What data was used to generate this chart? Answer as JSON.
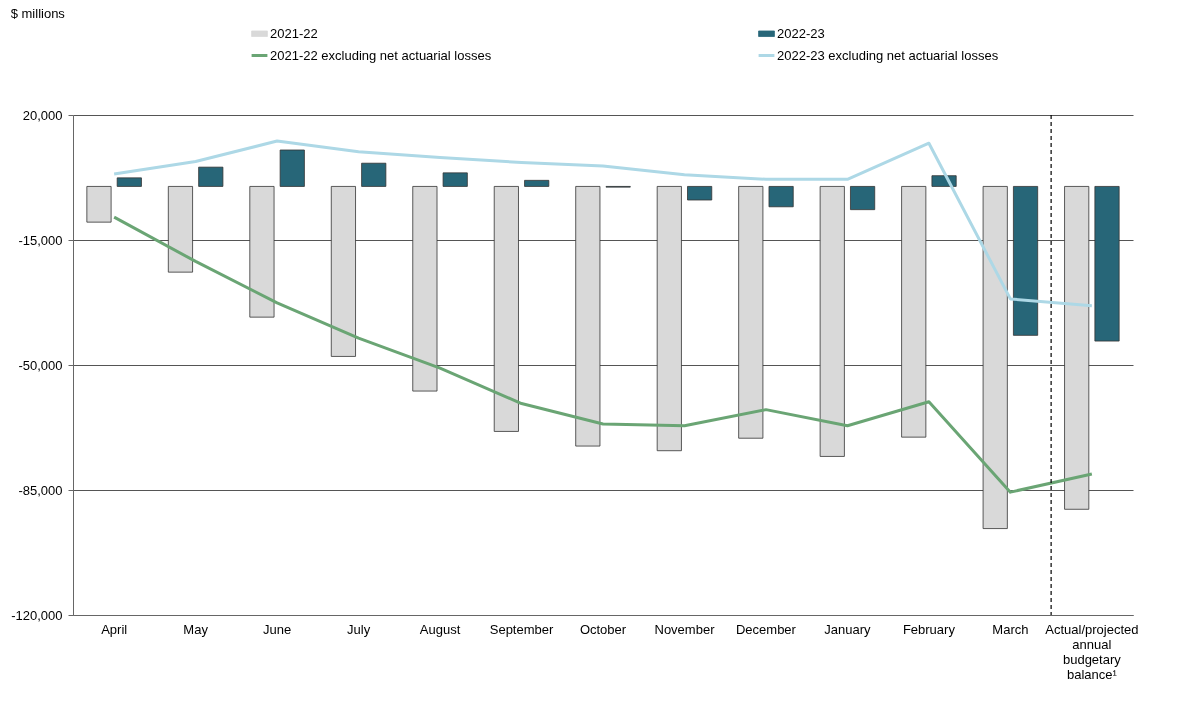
{
  "chart_data": {
    "type": "bar",
    "annotations": [
      "$ millions"
    ],
    "categories": [
      "April",
      "May",
      "June",
      "July",
      "August",
      "September",
      "October",
      "November",
      "December",
      "January",
      "February",
      "March",
      "Actual/projected annual budgetary balance¹"
    ],
    "series": [
      {
        "name": "2021-22",
        "color": "#d9d9d9",
        "values": [
          -10000,
          -24000,
          -36600,
          -47600,
          -57300,
          -68600,
          -72700,
          -74000,
          -70500,
          -75600,
          -70200,
          -95800,
          -90400
        ]
      },
      {
        "name": "2022-23",
        "color": "#276678",
        "values": [
          2400,
          5400,
          10200,
          6500,
          3800,
          1700,
          -200,
          -3800,
          -5700,
          -6500,
          3000,
          -41700,
          -43300
        ]
      },
      {
        "name": "2021-22 excluding net actuarial losses",
        "type": "line",
        "color": "#6aa574",
        "values": [
          -8600,
          -21000,
          -32600,
          -42500,
          -50900,
          -60800,
          -66500,
          -67000,
          -62500,
          -67000,
          -60300,
          -85600,
          -80500
        ]
      },
      {
        "name": "2022-23 excluding net actuarial losses",
        "type": "line",
        "color": "#add8e6",
        "values": [
          3500,
          7000,
          12700,
          9700,
          8100,
          6700,
          5700,
          3300,
          2000,
          2000,
          12100,
          -31500,
          -33400
        ]
      }
    ],
    "ylim": [
      -120000,
      20000
    ],
    "yticks": [
      {
        "value": -120000,
        "label": "-120,000"
      },
      {
        "value": -85000,
        "label": "-85,000"
      },
      {
        "value": -50000,
        "label": "-50,000"
      },
      {
        "value": -15000,
        "label": "-15,000"
      },
      {
        "value": 20000,
        "label": "20,000"
      }
    ],
    "grid": "y",
    "legend": "top",
    "ref_lines": [
      {
        "axis": "x",
        "value": "Actual/projected annual budgetary balance¹",
        "line_style": "dashed",
        "color": "#000000"
      }
    ]
  }
}
